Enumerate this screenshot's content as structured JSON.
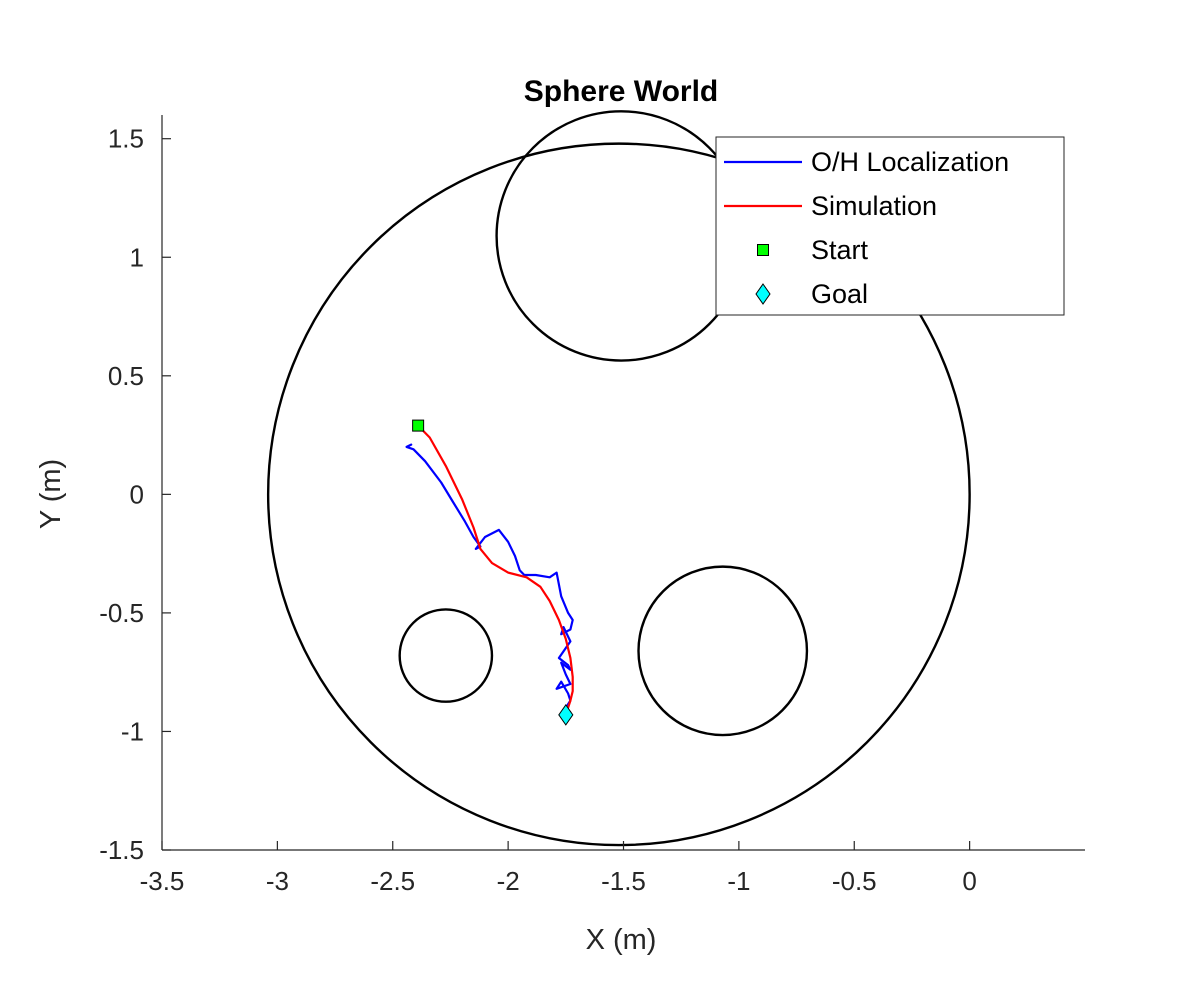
{
  "chart_data": {
    "type": "line",
    "title": "Sphere World",
    "xlabel": "X (m)",
    "ylabel": "Y (m)",
    "xlim": [
      -3.5,
      0.5
    ],
    "ylim": [
      -1.5,
      1.6
    ],
    "xticks": [
      -3.5,
      -3,
      -2.5,
      -2,
      -1.5,
      -1,
      -0.5,
      0
    ],
    "xtick_labels": [
      "-3.5",
      "-3",
      "-2.5",
      "-2",
      "-1.5",
      "-1",
      "-0.5",
      "0"
    ],
    "yticks": [
      -1.5,
      -1,
      -0.5,
      0,
      0.5,
      1,
      1.5
    ],
    "ytick_labels": [
      "-1.5",
      "-1",
      "-0.5",
      "0",
      "0.5",
      "1",
      "1.5"
    ],
    "grid": false,
    "legend_position": "top-right",
    "obstacles": [
      {
        "cx": -1.52,
        "cy": 0.0,
        "r": 1.52,
        "color": "#000000"
      },
      {
        "cx": -1.51,
        "cy": 1.09,
        "r": 0.54,
        "color": "#000000"
      },
      {
        "cx": -2.27,
        "cy": -0.68,
        "r": 0.2,
        "color": "#000000"
      },
      {
        "cx": -1.07,
        "cy": -0.66,
        "r": 0.365,
        "color": "#000000"
      }
    ],
    "series": [
      {
        "name": "O/H Localization",
        "color": "#0000ff",
        "x": [
          -2.42,
          -2.44,
          -2.41,
          -2.36,
          -2.29,
          -2.24,
          -2.19,
          -2.15,
          -2.12,
          -2.14,
          -2.1,
          -2.04,
          -2.0,
          -1.97,
          -1.95,
          -1.93,
          -1.88,
          -1.82,
          -1.79,
          -1.77,
          -1.74,
          -1.72,
          -1.73,
          -1.77,
          -1.76,
          -1.73,
          -1.78,
          -1.74,
          -1.73,
          -1.77,
          -1.75,
          -1.73,
          -1.79,
          -1.77,
          -1.74,
          -1.73,
          -1.75,
          -1.73
        ],
        "y": [
          0.21,
          0.2,
          0.19,
          0.14,
          0.05,
          -0.03,
          -0.11,
          -0.18,
          -0.22,
          -0.23,
          -0.18,
          -0.15,
          -0.2,
          -0.26,
          -0.32,
          -0.34,
          -0.34,
          -0.35,
          -0.33,
          -0.43,
          -0.5,
          -0.53,
          -0.57,
          -0.59,
          -0.56,
          -0.62,
          -0.69,
          -0.72,
          -0.74,
          -0.71,
          -0.76,
          -0.8,
          -0.82,
          -0.79,
          -0.84,
          -0.87,
          -0.9,
          -0.92
        ]
      },
      {
        "name": "Simulation",
        "color": "#ff0000",
        "x": [
          -2.39,
          -2.34,
          -2.27,
          -2.2,
          -2.15,
          -2.12,
          -2.07,
          -2.0,
          -1.92,
          -1.86,
          -1.82,
          -1.78,
          -1.75,
          -1.73,
          -1.72,
          -1.72,
          -1.73,
          -1.74,
          -1.75
        ],
        "y": [
          0.29,
          0.24,
          0.12,
          -0.02,
          -0.14,
          -0.23,
          -0.29,
          -0.33,
          -0.35,
          -0.39,
          -0.45,
          -0.53,
          -0.61,
          -0.69,
          -0.77,
          -0.83,
          -0.87,
          -0.9,
          -0.92
        ]
      }
    ],
    "markers": [
      {
        "name": "Start",
        "shape": "square",
        "color": "#00ff00",
        "x": -2.39,
        "y": 0.29
      },
      {
        "name": "Goal",
        "shape": "diamond",
        "color": "#00ffff",
        "x": -1.75,
        "y": -0.93
      }
    ]
  }
}
